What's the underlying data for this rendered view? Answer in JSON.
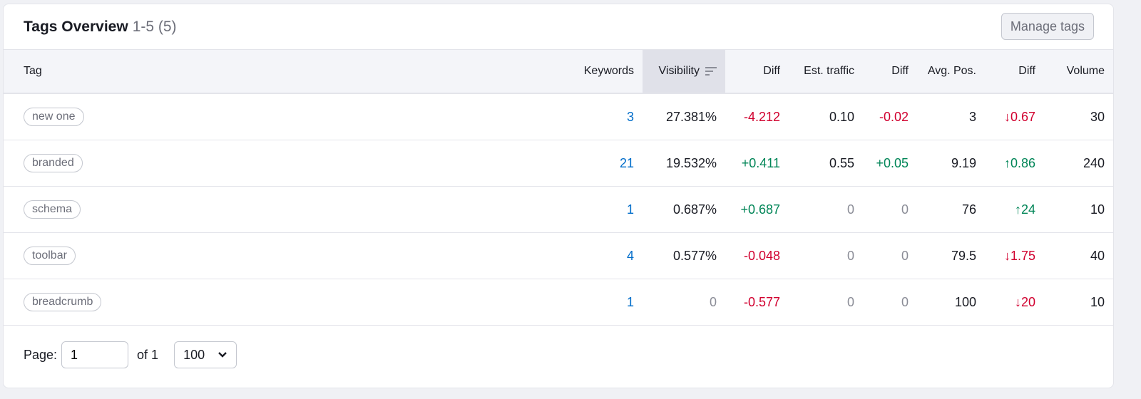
{
  "header": {
    "title": "Tags Overview",
    "range": "1-5 (5)",
    "manage_label": "Manage tags"
  },
  "columns": [
    "Tag",
    "Keywords",
    "Visibility",
    "Diff",
    "Est. traffic",
    "Diff",
    "Avg. Pos.",
    "Diff",
    "Volume"
  ],
  "sorted_column": "Visibility",
  "colors": {
    "link": "#006dca",
    "negative": "#d1002f",
    "positive": "#008557"
  },
  "rows": [
    {
      "tag": "new one",
      "keywords": "3",
      "visibility": "27.381%",
      "vis_diff": "-4.212",
      "traffic": "0.10",
      "traffic_diff": "-0.02",
      "avg_pos": "3",
      "pos_diff": "↓0.67",
      "volume": "30",
      "vis_dir": "neg",
      "traffic_dir": "neg",
      "pos_dir": "neg"
    },
    {
      "tag": "branded",
      "keywords": "21",
      "visibility": "19.532%",
      "vis_diff": "+0.411",
      "traffic": "0.55",
      "traffic_diff": "+0.05",
      "avg_pos": "9.19",
      "pos_diff": "↑0.86",
      "volume": "240",
      "vis_dir": "pos",
      "traffic_dir": "pos",
      "pos_dir": "pos"
    },
    {
      "tag": "schema",
      "keywords": "1",
      "visibility": "0.687%",
      "vis_diff": "+0.687",
      "traffic": "0",
      "traffic_diff": "0",
      "avg_pos": "76",
      "pos_diff": "↑24",
      "volume": "10",
      "vis_dir": "pos",
      "traffic_dir": "muted",
      "pos_dir": "pos"
    },
    {
      "tag": "toolbar",
      "keywords": "4",
      "visibility": "0.577%",
      "vis_diff": "-0.048",
      "traffic": "0",
      "traffic_diff": "0",
      "avg_pos": "79.5",
      "pos_diff": "↓1.75",
      "volume": "40",
      "vis_dir": "neg",
      "traffic_dir": "muted",
      "pos_dir": "neg"
    },
    {
      "tag": "breadcrumb",
      "keywords": "1",
      "visibility": "0",
      "vis_diff": "-0.577",
      "traffic": "0",
      "traffic_diff": "0",
      "avg_pos": "100",
      "pos_diff": "↓20",
      "volume": "10",
      "vis_dir": "neg",
      "traffic_dir": "muted",
      "pos_dir": "neg"
    }
  ],
  "footer": {
    "page_label": "Page:",
    "page_value": "1",
    "of_label": "of 1",
    "per_page": "100"
  }
}
